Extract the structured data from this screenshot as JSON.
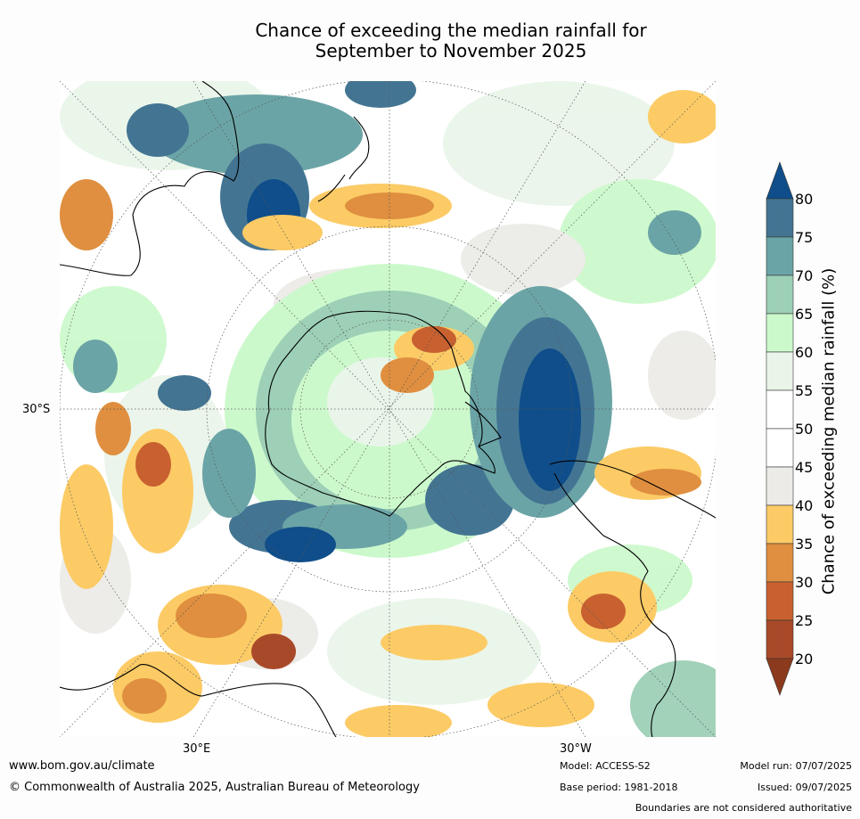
{
  "title": {
    "line1": "Chance of exceeding the median rainfall for",
    "line2": "September to November 2025"
  },
  "map": {
    "projection": "south polar stereographic",
    "latitude_labels": [
      "30°S"
    ],
    "longitude_labels": [
      "30°E",
      "30°W"
    ],
    "regions": [
      {
        "name": "Antarctica",
        "outlined": true
      },
      {
        "name": "Australia",
        "outlined": true
      },
      {
        "name": "New Zealand",
        "outlined": true
      },
      {
        "name": "South America",
        "outlined": true
      },
      {
        "name": "Southern Africa",
        "outlined": true
      }
    ]
  },
  "colorbar": {
    "label": "Chance of exceeding median rainfall (%)",
    "ticks": [
      "80",
      "75",
      "70",
      "65",
      "60",
      "55",
      "50",
      "45",
      "40",
      "35",
      "30",
      "25",
      "20"
    ],
    "bands": [
      {
        "range": "80-100",
        "color": "#0f4e8a"
      },
      {
        "range": "75-80",
        "color": "#437593"
      },
      {
        "range": "70-75",
        "color": "#6ba4a6"
      },
      {
        "range": "65-70",
        "color": "#9dd0b6"
      },
      {
        "range": "60-65",
        "color": "#ccf9cc"
      },
      {
        "range": "55-60",
        "color": "#eaf5ea"
      },
      {
        "range": "50-55",
        "color": "#ffffff"
      },
      {
        "range": "45-50",
        "color": "#ffffff"
      },
      {
        "range": "40-45",
        "color": "#ecebe7"
      },
      {
        "range": "35-40",
        "color": "#fccb66"
      },
      {
        "range": "30-35",
        "color": "#df8f3f"
      },
      {
        "range": "25-30",
        "color": "#c8612f"
      },
      {
        "range": "20-25",
        "color": "#a84a29"
      },
      {
        "range": "0-20",
        "color": "#8c3a1e"
      }
    ]
  },
  "footer": {
    "url": "www.bom.gov.au/climate",
    "copyright": "© Commonwealth of Australia 2025, Australian Bureau of Meteorology",
    "model": "Model: ACCESS-S2",
    "base_period": "Base period: 1981-2018",
    "model_run": "Model run: 07/07/2025",
    "issued": "Issued: 09/07/2025",
    "disclaimer": "Boundaries are not considered authoritative"
  }
}
